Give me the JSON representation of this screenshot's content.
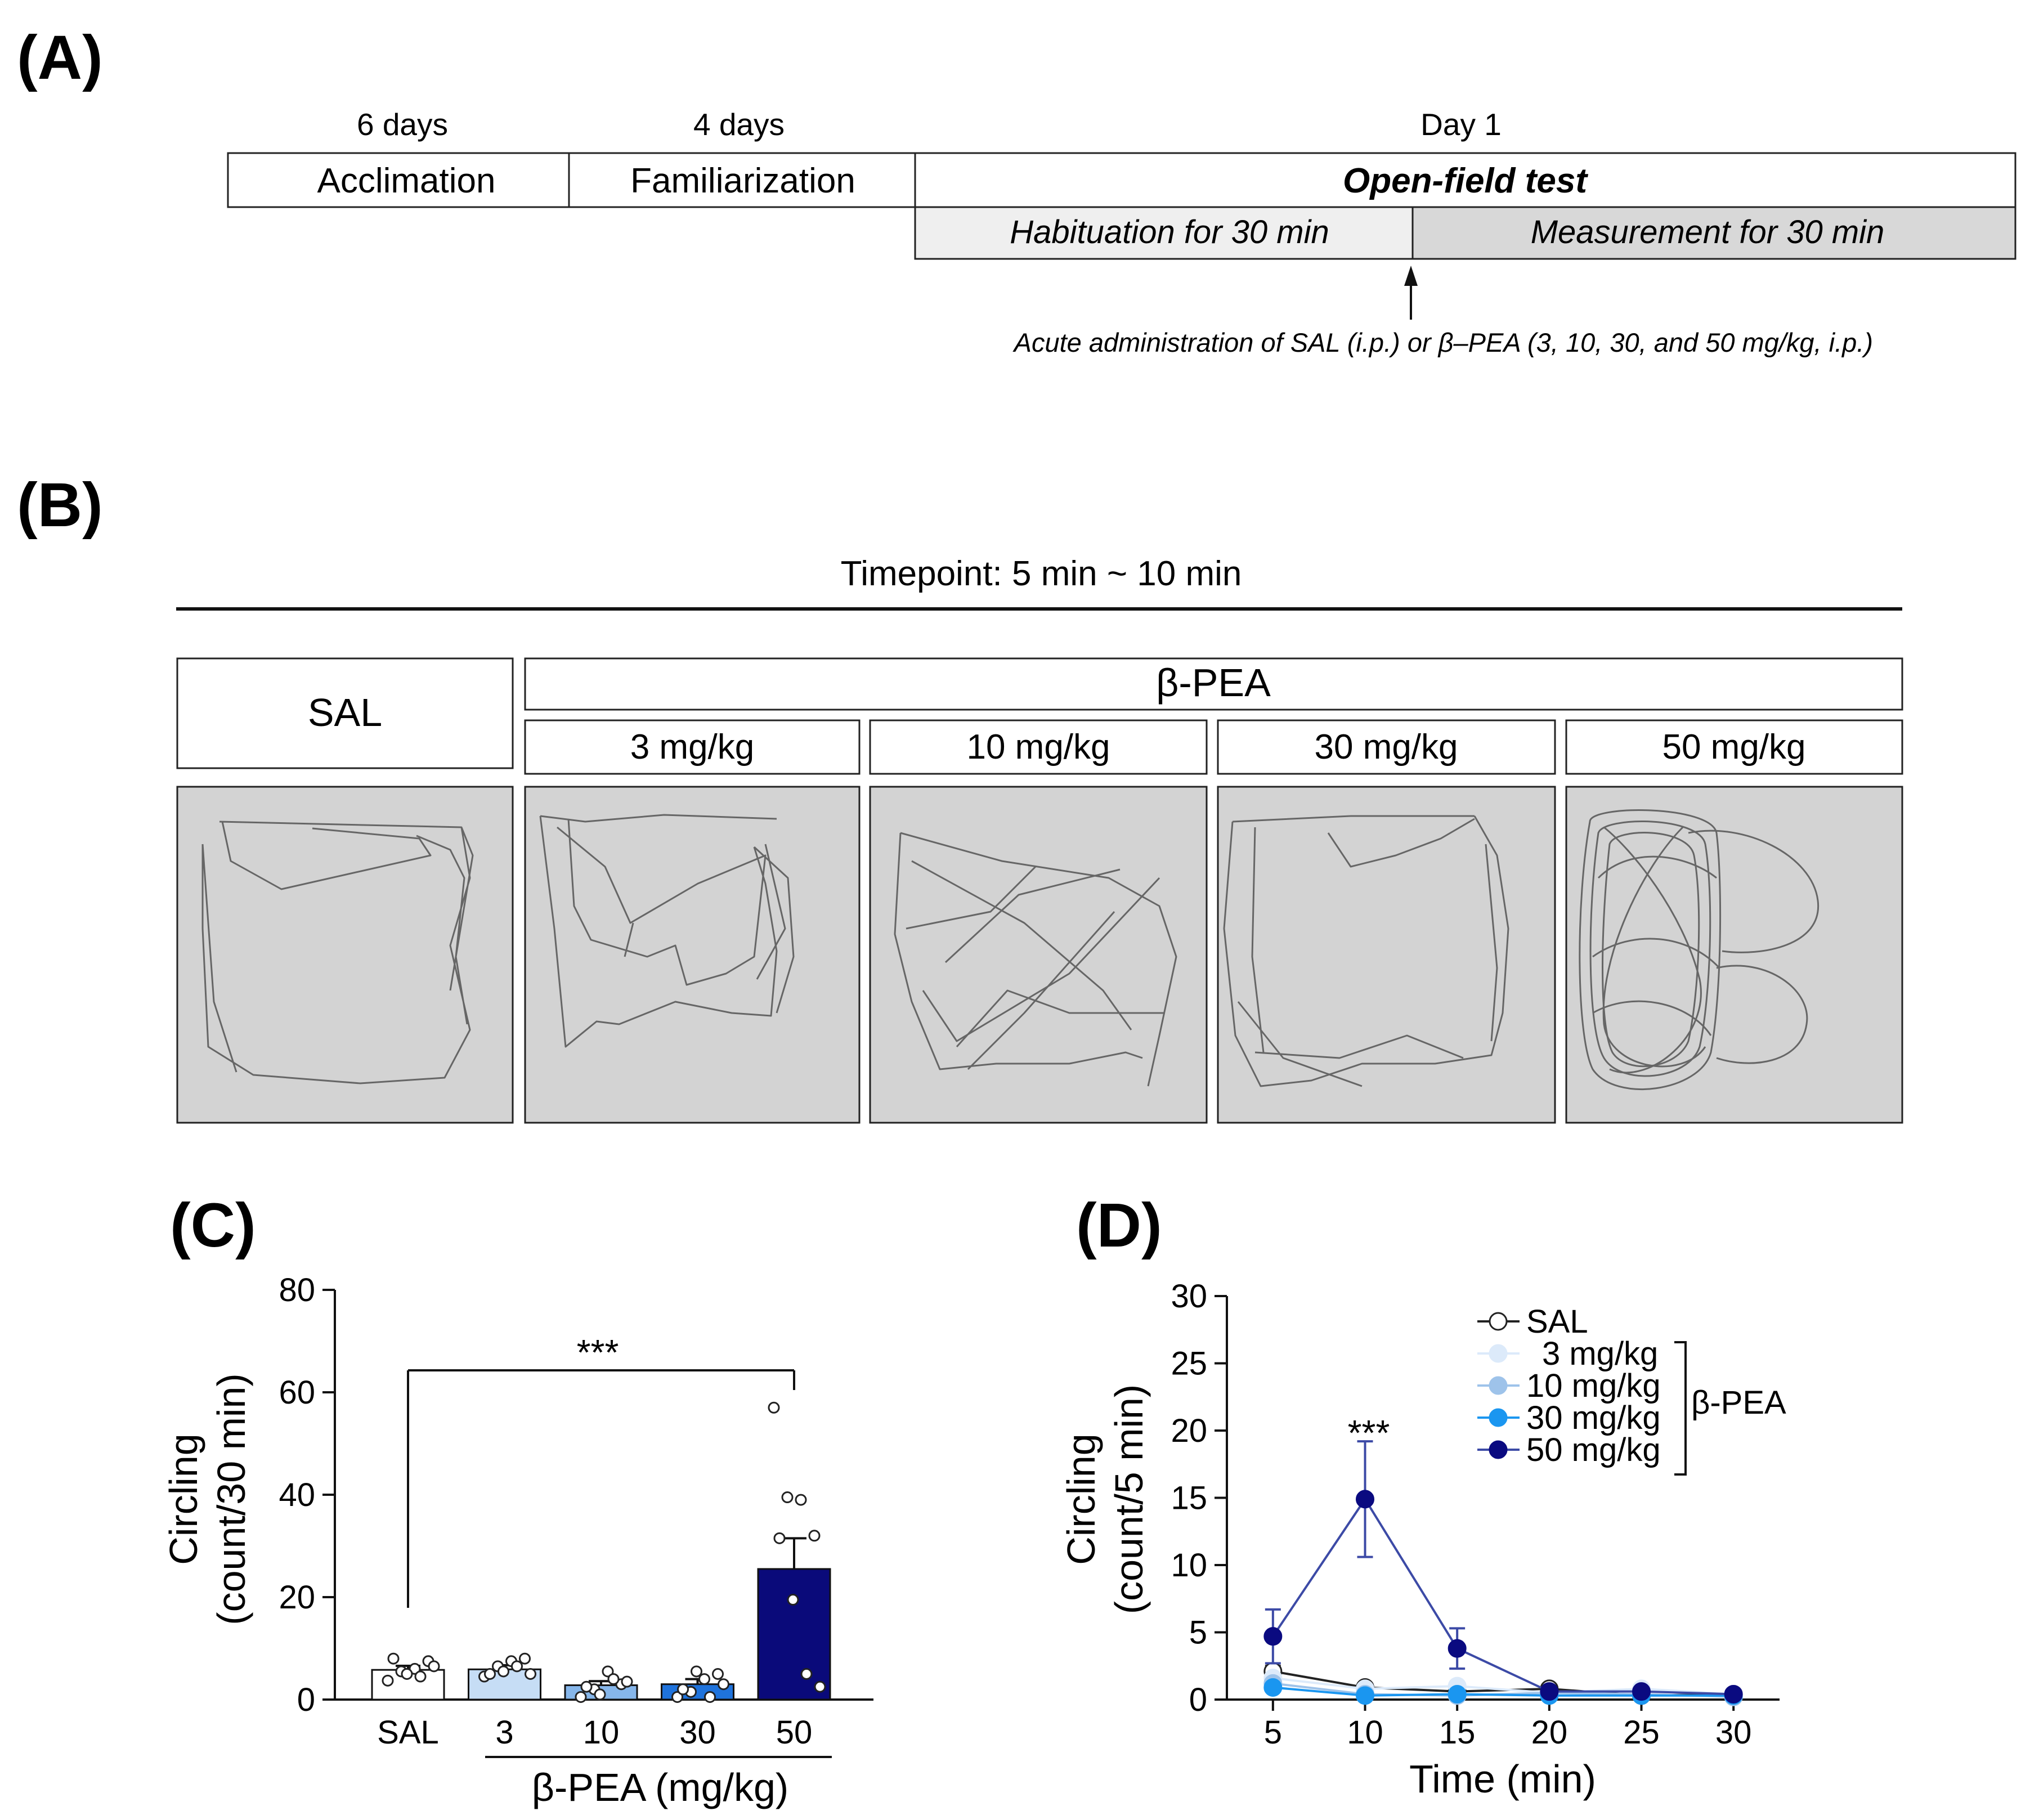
{
  "panel_labels": {
    "a": "(A)",
    "b": "(B)",
    "c": "(C)",
    "d": "(D)"
  },
  "timeline": {
    "phases": [
      {
        "duration": "6  days",
        "label": "Acclimation"
      },
      {
        "duration": "4  days",
        "label": "Familiarization"
      },
      {
        "duration": "Day 1",
        "label": "Open-field  test"
      }
    ],
    "sub_phases": [
      "Habituation for 30 min",
      "Measurement for 30 min"
    ],
    "injection_note": "Acute administration of SAL (i.p.) or β–PEA (3, 10, 30, and 50 mg/kg, i.p.)",
    "colors": {
      "habituation": "#efefef",
      "measurement": "#d8d8d8"
    }
  },
  "tracking": {
    "timepoint": "Timepoint:   5 min ~ 10 min",
    "control_label": "SAL",
    "drug_label": "β-PEA",
    "doses": [
      "3 mg/kg",
      "10 mg/kg",
      "30 mg/kg",
      "50 mg/kg"
    ],
    "arena_color": "#d3d3d3",
    "track_color": "#666666"
  },
  "chart_data": [
    {
      "type": "bar",
      "panel": "C",
      "categories": [
        "SAL",
        "3",
        "10",
        "30",
        "50"
      ],
      "values": [
        5.8,
        5.9,
        2.8,
        3.0,
        25.5
      ],
      "sem": [
        0.8,
        0.8,
        0.8,
        1.0,
        6.0
      ],
      "points": [
        [
          3.7,
          5.5,
          6.0,
          7.5,
          8.0,
          5.0,
          4.5,
          6.5
        ],
        [
          4.5,
          6.5,
          7.5,
          8.0,
          5.0,
          5.5,
          6.5,
          5.0
        ],
        [
          0.5,
          2.0,
          5.5,
          3.0,
          2.5,
          1.0,
          4.0,
          3.5
        ],
        [
          0.5,
          1.5,
          4.0,
          5.0,
          2.0,
          5.5,
          0.5,
          3.0
        ],
        [
          57.0,
          39.5,
          39.0,
          32.0,
          31.5,
          19.5,
          5.0,
          2.5
        ]
      ],
      "colors": [
        "#ffffff",
        "#c6ddf5",
        "#86b6ea",
        "#1f73dc",
        "#0a0a7a"
      ],
      "ylim": [
        0,
        80
      ],
      "yticks": [
        0,
        20,
        40,
        60,
        80
      ],
      "ylabel_line1": "Circling",
      "ylabel_line2": "(count/30 min)",
      "xlabel": "β-PEA (mg/kg)",
      "significance": "***"
    },
    {
      "type": "line",
      "panel": "D",
      "x": [
        5,
        10,
        15,
        20,
        25,
        30
      ],
      "xlim": [
        2.5,
        32.5
      ],
      "ylim": [
        0,
        30
      ],
      "xticks": [
        5,
        10,
        15,
        20,
        25,
        30
      ],
      "yticks": [
        0,
        5,
        10,
        15,
        20,
        25,
        30
      ],
      "xlabel": "Time (min)",
      "ylabel_line1": "Circling",
      "ylabel_line2": "(count/5 min)",
      "group_label": "β-PEA",
      "significance": "***",
      "series": [
        {
          "name": "SAL",
          "values": [
            2.1,
            0.9,
            0.6,
            0.8,
            0.3,
            0.4
          ],
          "err": [
            0.4,
            0.2,
            0.2,
            0.2,
            0.1,
            0.1
          ],
          "color": "#ffffff",
          "stroke": "#222222",
          "line": "#222222"
        },
        {
          "name": "3 mg/kg",
          "values": [
            1.6,
            0.8,
            1.0,
            0.5,
            0.8,
            0.4
          ],
          "err": [
            0.3,
            0.2,
            0.2,
            0.2,
            0.2,
            0.1
          ],
          "color": "#dceafa",
          "stroke": "#dceafa",
          "line": "#dceafa"
        },
        {
          "name": "10 mg/kg",
          "values": [
            1.2,
            0.4,
            0.3,
            0.5,
            0.4,
            0.2
          ],
          "err": [
            0.3,
            0.1,
            0.1,
            0.1,
            0.1,
            0.1
          ],
          "color": "#9ec3ea",
          "stroke": "#9ec3ea",
          "line": "#9ec3ea"
        },
        {
          "name": "30 mg/kg",
          "values": [
            0.9,
            0.3,
            0.4,
            0.3,
            0.3,
            0.3
          ],
          "err": [
            0.2,
            0.1,
            0.1,
            0.1,
            0.1,
            0.1
          ],
          "color": "#1a96f0",
          "stroke": "#1a96f0",
          "line": "#1a96f0"
        },
        {
          "name": "50 mg/kg",
          "values": [
            4.7,
            14.9,
            3.8,
            0.6,
            0.6,
            0.4
          ],
          "err": [
            2.0,
            4.3,
            1.5,
            0.2,
            0.2,
            0.1
          ],
          "color": "#0a0a80",
          "stroke": "#0a0a80",
          "line": "#3c4aa6"
        }
      ]
    }
  ]
}
